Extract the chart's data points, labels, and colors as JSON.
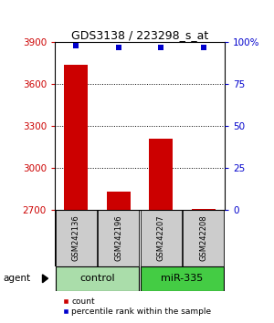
{
  "title": "GDS3138 / 223298_s_at",
  "samples": [
    "GSM242136",
    "GSM242196",
    "GSM242207",
    "GSM242208"
  ],
  "counts": [
    3740,
    2830,
    3210,
    2710
  ],
  "percentiles": [
    98,
    97,
    97,
    97
  ],
  "ylim_left": [
    2700,
    3900
  ],
  "ylim_right": [
    0,
    100
  ],
  "yticks_left": [
    2700,
    3000,
    3300,
    3600,
    3900
  ],
  "yticks_right": [
    0,
    25,
    50,
    75,
    100
  ],
  "ytick_labels_right": [
    "0",
    "25",
    "50",
    "75",
    "100%"
  ],
  "bar_color": "#cc0000",
  "dot_color": "#0000cc",
  "sample_bg_color": "#cccccc",
  "group_colors": [
    "#aaddaa",
    "#44cc44"
  ],
  "left_tick_color": "#cc0000",
  "right_tick_color": "#0000cc",
  "bar_width": 0.55,
  "dot_size": 25,
  "group_spans": [
    [
      0,
      1,
      "control"
    ],
    [
      2,
      3,
      "miR-335"
    ]
  ],
  "grid_ticks": [
    3000,
    3300,
    3600
  ]
}
